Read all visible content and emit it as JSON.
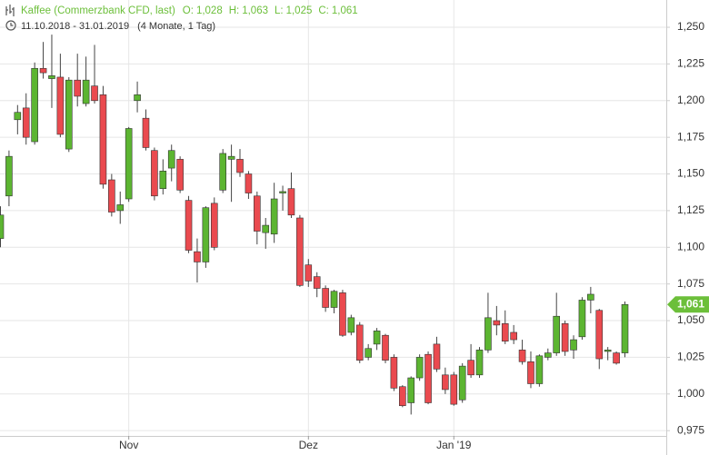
{
  "chart_data": {
    "type": "candlestick",
    "title": "Kaffee (Commerzbank CFD, last)",
    "ohlc_header": [
      {
        "label": "O:",
        "value": "1,028"
      },
      {
        "label": "H:",
        "value": "1,063"
      },
      {
        "label": "L:",
        "value": "1,025"
      },
      {
        "label": "C:",
        "value": "1,061"
      }
    ],
    "date_range": "11.10.2018 - 31.01.2019",
    "period": "(4 Monate, 1 Tag)",
    "last_price_label": "1,061",
    "up_color": "#5cb531",
    "down_color": "#ea4a4f",
    "wick_color": "#444444",
    "last_color": "#6cbf3a",
    "categories": [
      null,
      null,
      null,
      null,
      null,
      null,
      null,
      null,
      null,
      null,
      null,
      null,
      null,
      null,
      null,
      "Nov",
      null,
      null,
      null,
      null,
      null,
      null,
      null,
      null,
      null,
      null,
      null,
      null,
      null,
      null,
      null,
      null,
      null,
      null,
      null,
      null,
      "Dez",
      null,
      null,
      null,
      null,
      null,
      null,
      null,
      null,
      null,
      null,
      null,
      null,
      null,
      null,
      null,
      null,
      "Jan '19",
      null,
      null,
      null,
      null,
      null,
      null,
      null,
      null,
      null,
      null,
      null,
      null,
      null,
      null,
      null,
      null,
      null,
      null,
      null,
      null
    ],
    "open": [
      1.106,
      1.135,
      1.187,
      1.195,
      1.172,
      1.222,
      1.215,
      1.216,
      1.167,
      1.214,
      1.198,
      1.21,
      1.204,
      1.146,
      1.125,
      1.133,
      1.2,
      1.188,
      1.166,
      1.14,
      1.154,
      1.16,
      1.132,
      1.097,
      1.09,
      1.13,
      1.139,
      1.16,
      1.16,
      1.15,
      1.135,
      1.11,
      1.109,
      1.137,
      1.14,
      1.12,
      1.088,
      1.08,
      1.072,
      1.059,
      1.069,
      1.042,
      1.047,
      1.025,
      1.034,
      1.04,
      1.025,
      1.005,
      0.994,
      1.011,
      1.027,
      1.034,
      1.013,
      1.013,
      0.996,
      1.023,
      1.013,
      1.03,
      1.05,
      1.048,
      1.042,
      1.03,
      1.022,
      1.007,
      1.025,
      1.028,
      1.048,
      1.03,
      1.039,
      1.064,
      1.057,
      1.029,
      1.028,
      1.028
    ],
    "high": [
      1.128,
      1.166,
      1.197,
      1.205,
      1.226,
      1.24,
      1.245,
      1.232,
      1.216,
      1.232,
      1.23,
      1.238,
      1.21,
      1.15,
      1.138,
      1.182,
      1.213,
      1.194,
      1.168,
      1.16,
      1.17,
      1.162,
      1.135,
      1.106,
      1.128,
      1.134,
      1.167,
      1.17,
      1.167,
      1.152,
      1.138,
      1.12,
      1.144,
      1.142,
      1.151,
      1.122,
      1.092,
      1.083,
      1.074,
      1.071,
      1.071,
      1.054,
      1.049,
      1.034,
      1.045,
      1.041,
      1.027,
      1.006,
      1.012,
      1.027,
      1.029,
      1.039,
      1.018,
      1.015,
      1.021,
      1.034,
      1.032,
      1.069,
      1.06,
      1.057,
      1.047,
      1.037,
      1.029,
      1.027,
      1.031,
      1.069,
      1.05,
      1.04,
      1.066,
      1.073,
      1.058,
      1.032,
      1.029,
      1.063
    ],
    "low": [
      1.1,
      1.128,
      1.177,
      1.17,
      1.17,
      1.215,
      1.195,
      1.175,
      1.165,
      1.196,
      1.196,
      1.198,
      1.14,
      1.121,
      1.116,
      1.131,
      1.192,
      1.166,
      1.132,
      1.136,
      1.145,
      1.137,
      1.096,
      1.076,
      1.086,
      1.098,
      1.137,
      1.131,
      1.148,
      1.133,
      1.102,
      1.099,
      1.103,
      1.125,
      1.12,
      1.073,
      1.073,
      1.066,
      1.056,
      1.055,
      1.039,
      1.04,
      1.021,
      1.023,
      1.03,
      1.021,
      1.002,
      0.991,
      0.986,
      1.009,
      0.993,
      1.015,
      1.0,
      0.992,
      0.994,
      1.011,
      1.011,
      1.028,
      1.04,
      1.034,
      1.034,
      1.02,
      1.004,
      1.005,
      1.023,
      1.026,
      1.026,
      1.024,
      1.037,
      1.055,
      1.017,
      1.023,
      1.02,
      1.025
    ],
    "close": [
      1.122,
      1.162,
      1.192,
      1.175,
      1.222,
      1.219,
      1.217,
      1.177,
      1.214,
      1.203,
      1.214,
      1.2,
      1.143,
      1.124,
      1.129,
      1.181,
      1.204,
      1.168,
      1.135,
      1.152,
      1.166,
      1.139,
      1.098,
      1.09,
      1.127,
      1.1,
      1.164,
      1.162,
      1.151,
      1.137,
      1.111,
      1.115,
      1.133,
      1.138,
      1.122,
      1.074,
      1.077,
      1.072,
      1.059,
      1.07,
      1.04,
      1.052,
      1.023,
      1.031,
      1.043,
      1.023,
      1.004,
      0.992,
      1.011,
      1.025,
      0.994,
      1.017,
      1.003,
      0.993,
      1.019,
      1.013,
      1.03,
      1.052,
      1.047,
      1.036,
      1.037,
      1.022,
      1.007,
      1.026,
      1.028,
      1.053,
      1.029,
      1.037,
      1.064,
      1.068,
      1.024,
      1.03,
      1.021,
      1.061
    ],
    "ylim": [
      0.9714,
      1.2686
    ],
    "yticks": [
      {
        "value": 1.25,
        "label": "1,250"
      },
      {
        "value": 1.225,
        "label": "1,225"
      },
      {
        "value": 1.2,
        "label": "1,200"
      },
      {
        "value": 1.175,
        "label": "1,175"
      },
      {
        "value": 1.15,
        "label": "1,150"
      },
      {
        "value": 1.125,
        "label": "1,125"
      },
      {
        "value": 1.1,
        "label": "1,100"
      },
      {
        "value": 1.075,
        "label": "1,075"
      },
      {
        "value": 1.05,
        "label": "1,050"
      },
      {
        "value": 1.025,
        "label": "1,025"
      },
      {
        "value": 1.0,
        "label": "1,000"
      },
      {
        "value": 0.975,
        "label": "0,975"
      }
    ],
    "grid": true
  }
}
